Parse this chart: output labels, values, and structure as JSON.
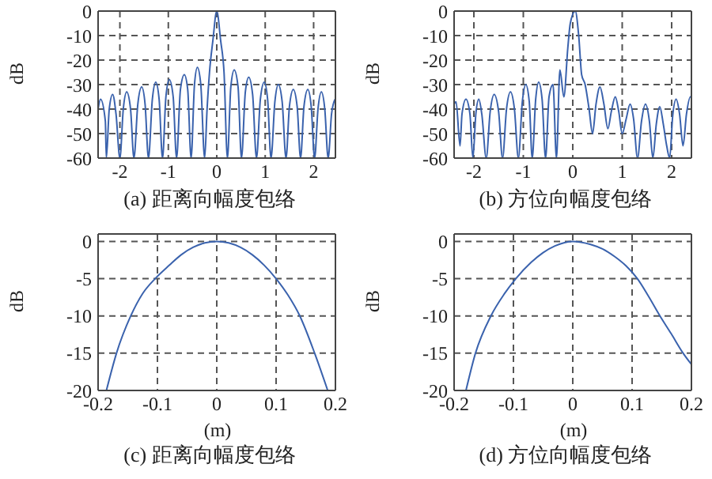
{
  "chart_data": [
    {
      "type": "line",
      "title": "(a) 距离向幅度包络",
      "ylabel": "dB",
      "xlim": [
        -2.45,
        2.45
      ],
      "xticks": [
        -2,
        -1,
        0,
        1,
        2
      ],
      "ylim": [
        -60,
        0
      ],
      "yticks": [
        -60,
        -50,
        -40,
        -30,
        -20,
        -10,
        0
      ],
      "grid": true,
      "series": [
        {
          "color": "#3a62ad",
          "x": [
            -2.45,
            -2.4,
            -2.3,
            -2.28,
            -2.22,
            -2.15,
            -2.08,
            -2.0,
            -1.93,
            -1.86,
            -1.78,
            -1.71,
            -1.63,
            -1.55,
            -1.48,
            -1.41,
            -1.33,
            -1.26,
            -1.19,
            -1.12,
            -1.05,
            -0.98,
            -0.9,
            -0.83,
            -0.75,
            -0.67,
            -0.6,
            -0.53,
            -0.46,
            -0.4,
            -0.33,
            -0.25,
            -0.2,
            -0.15,
            -0.08,
            0,
            0.08,
            0.15,
            0.22,
            0.29,
            0.36,
            0.44,
            0.51,
            0.59,
            0.66,
            0.74,
            0.82,
            0.9,
            0.98,
            1.05,
            1.12,
            1.2,
            1.27,
            1.35,
            1.43,
            1.5,
            1.58,
            1.66,
            1.73,
            1.8,
            1.88,
            1.95,
            2.02,
            2.09,
            2.16,
            2.23,
            2.3,
            2.37,
            2.44
          ],
          "values": [
            -40,
            -36,
            -45,
            -60,
            -40,
            -34,
            -42,
            -60,
            -40,
            -33,
            -40,
            -60,
            -38,
            -31,
            -38,
            -60,
            -36,
            -29,
            -36,
            -60,
            -35,
            -28,
            -35,
            -60,
            -32,
            -26,
            -32,
            -60,
            -30,
            -23,
            -30,
            -60,
            -40,
            -25,
            -12,
            0,
            -12,
            -25,
            -60,
            -31,
            -24,
            -31,
            -60,
            -33,
            -27,
            -34,
            -60,
            -36,
            -29,
            -36,
            -60,
            -37,
            -30,
            -37,
            -60,
            -39,
            -32,
            -39,
            -60,
            -39,
            -32,
            -39,
            -60,
            -40,
            -33,
            -40,
            -60,
            -42,
            -36
          ]
        }
      ]
    },
    {
      "type": "line",
      "title": "(b) 方位向幅度包络",
      "ylabel": "dB",
      "xlim": [
        -2.4,
        2.4
      ],
      "xticks": [
        -2,
        -1,
        0,
        1,
        2
      ],
      "ylim": [
        -60,
        0
      ],
      "yticks": [
        -60,
        -50,
        -40,
        -30,
        -20,
        -10,
        0
      ],
      "grid": true,
      "series": [
        {
          "color": "#3a62ad",
          "x": [
            -2.4,
            -2.36,
            -2.28,
            -2.24,
            -2.16,
            -2.08,
            -2.02,
            -1.96,
            -1.9,
            -1.84,
            -1.75,
            -1.67,
            -1.59,
            -1.5,
            -1.42,
            -1.34,
            -1.26,
            -1.18,
            -1.1,
            -1.02,
            -0.95,
            -0.88,
            -0.82,
            -0.75,
            -0.69,
            -0.62,
            -0.55,
            -0.48,
            -0.4,
            -0.33,
            -0.26,
            -0.18,
            -0.1,
            -0.05,
            0.05,
            0.12,
            0.18,
            0.25,
            0.33,
            0.4,
            0.47,
            0.55,
            0.63,
            0.71,
            0.78,
            0.86,
            0.93,
            1.0,
            1.08,
            1.16,
            1.23,
            1.31,
            1.39,
            1.47,
            1.55,
            1.62,
            1.69,
            1.76,
            1.83,
            1.9,
            1.96,
            2.02,
            2.09,
            2.16,
            2.23,
            2.3,
            2.38,
            2.4
          ],
          "values": [
            -38,
            -37,
            -55,
            -42,
            -36,
            -42,
            -60,
            -42,
            -36,
            -42,
            -60,
            -41,
            -34,
            -41,
            -60,
            -40,
            -33,
            -40,
            -60,
            -37,
            -30,
            -37,
            -60,
            -36,
            -29,
            -36,
            -60,
            -35,
            -30,
            -60,
            -24,
            -35,
            -15,
            -5,
            0,
            -10,
            -26,
            -30,
            -40,
            -50,
            -38,
            -31,
            -38,
            -48,
            -41,
            -35,
            -41,
            -50,
            -44,
            -38,
            -44,
            -60,
            -45,
            -38,
            -45,
            -60,
            -46,
            -39,
            -46,
            -55,
            -60,
            -43,
            -36,
            -42,
            -55,
            -42,
            -35,
            -35
          ]
        }
      ]
    },
    {
      "type": "line",
      "title": "(c) 距离向幅度包络",
      "xlabel": "(m)",
      "ylabel": "dB",
      "xlim": [
        -0.2,
        0.2
      ],
      "xticks": [
        -0.2,
        -0.1,
        0,
        0.1,
        0.2
      ],
      "ylim": [
        -20,
        1
      ],
      "yticks": [
        -20,
        -15,
        -10,
        -5,
        0
      ],
      "grid": true,
      "series": [
        {
          "color": "#3a62ad",
          "x": [
            -0.186,
            -0.169,
            -0.145,
            -0.125,
            -0.104,
            -0.08,
            -0.06,
            -0.04,
            -0.02,
            0,
            0.02,
            0.04,
            0.06,
            0.08,
            0.1,
            0.12,
            0.14,
            0.165,
            0.187
          ],
          "values": [
            -20,
            -15,
            -10,
            -7,
            -5,
            -3.2,
            -1.8,
            -0.8,
            -0.2,
            0,
            -0.2,
            -0.8,
            -1.8,
            -3.2,
            -5,
            -7.2,
            -10,
            -15,
            -20
          ]
        }
      ]
    },
    {
      "type": "line",
      "title": "(d) 方位向幅度包络",
      "xlabel": "(m)",
      "ylabel": "dB",
      "xlim": [
        -0.2,
        0.2
      ],
      "xticks": [
        -0.2,
        -0.1,
        0,
        0.1,
        0.2
      ],
      "ylim": [
        -20,
        1
      ],
      "yticks": [
        -20,
        -15,
        -10,
        -5,
        0
      ],
      "grid": true,
      "series": [
        {
          "color": "#3a62ad",
          "x": [
            -0.18,
            -0.164,
            -0.138,
            -0.115,
            -0.096,
            -0.07,
            -0.05,
            -0.03,
            0,
            0.03,
            0.05,
            0.07,
            0.09,
            0.109,
            0.128,
            0.147,
            0.166,
            0.186,
            0.2
          ],
          "values": [
            -20,
            -15,
            -10,
            -7,
            -5,
            -2.8,
            -1.5,
            -0.6,
            0,
            -0.4,
            -1,
            -2,
            -3.3,
            -5,
            -7.4,
            -10,
            -12.4,
            -15,
            -16.5
          ]
        }
      ]
    }
  ]
}
